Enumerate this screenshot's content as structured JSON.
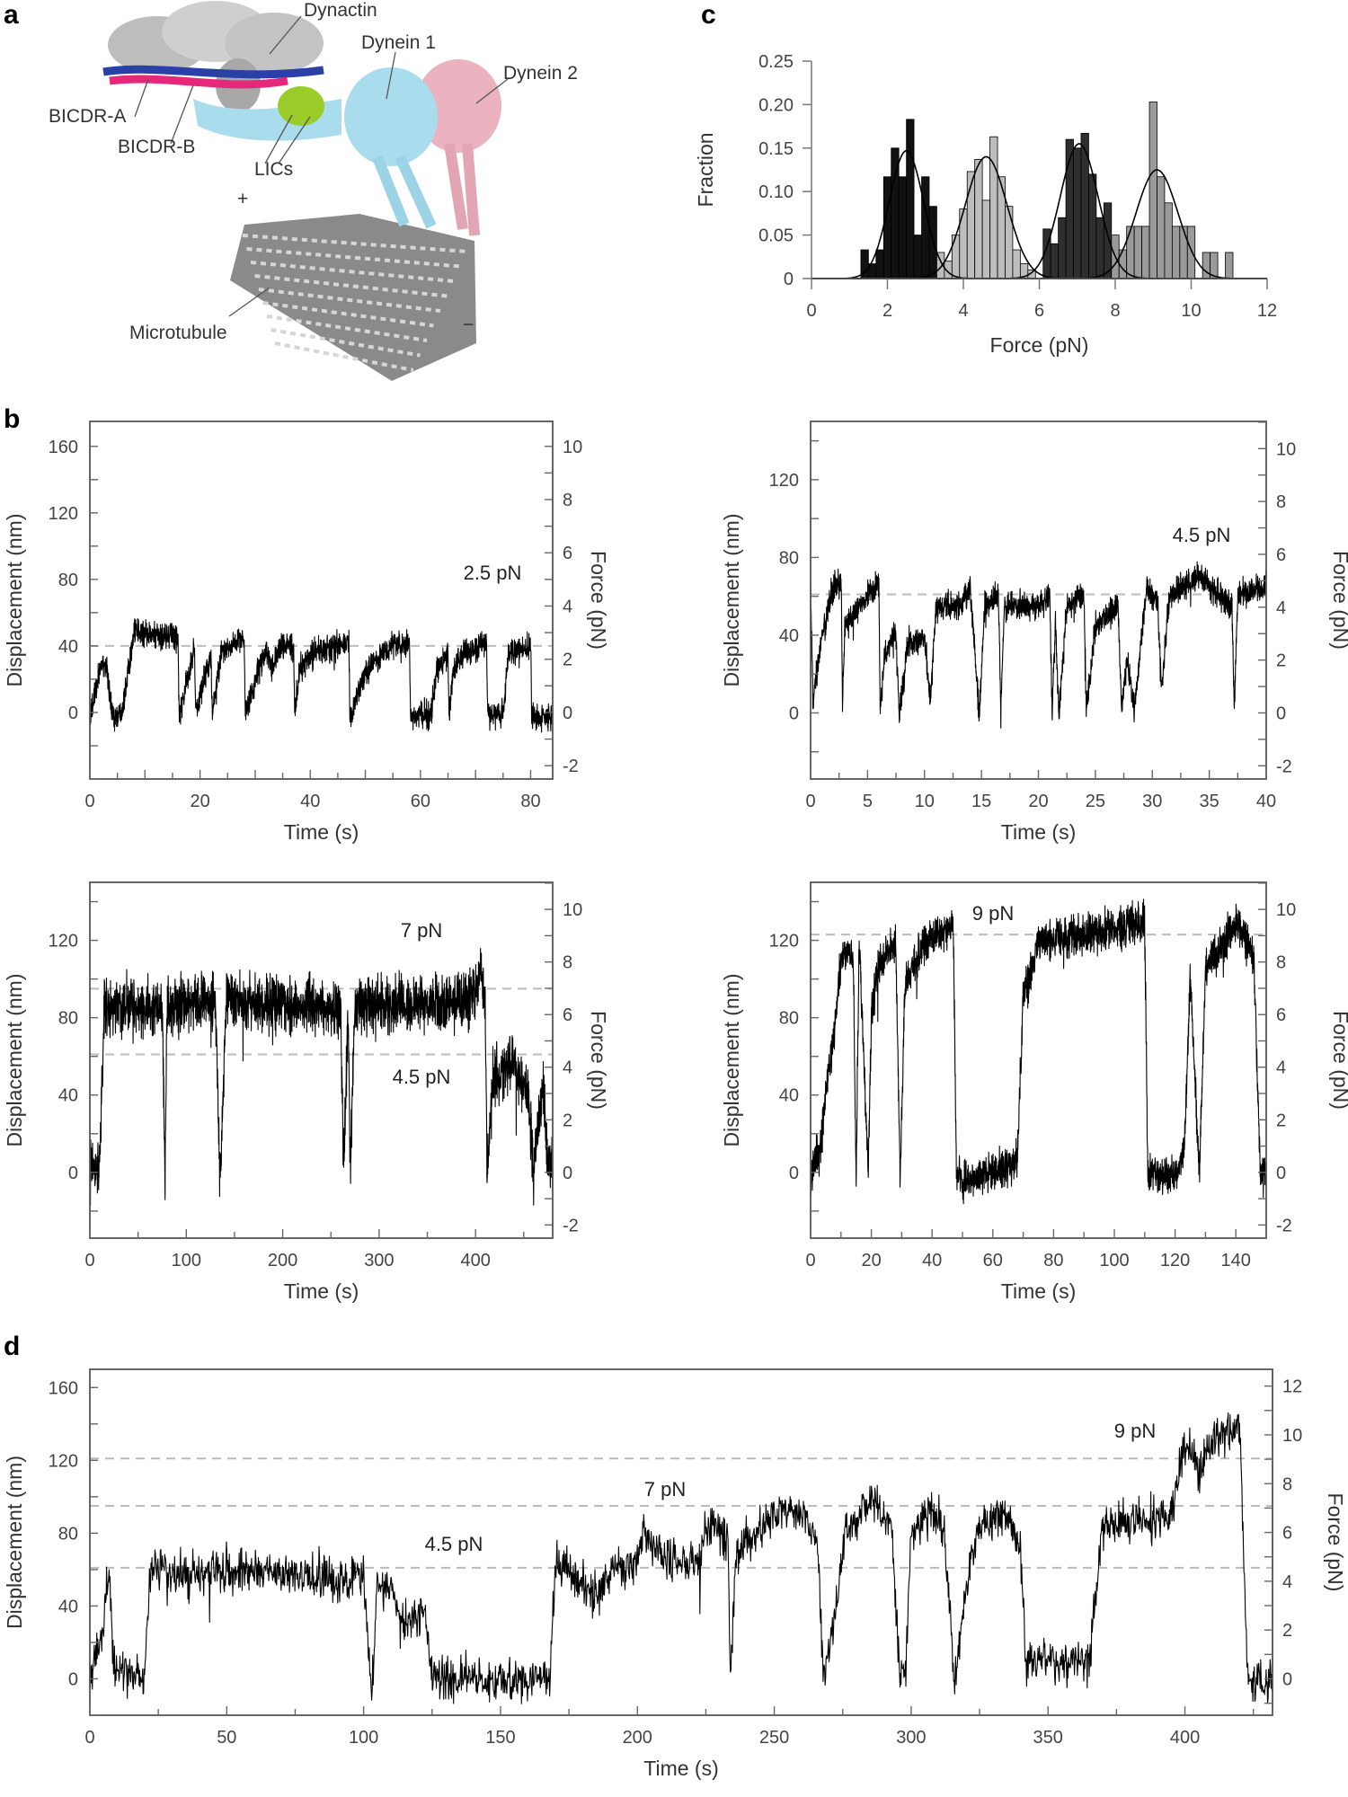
{
  "panel_labels": {
    "a": "a",
    "b": "b",
    "c": "c",
    "d": "d"
  },
  "structure": {
    "labels": {
      "dynactin": "Dynactin",
      "dynein1": "Dynein 1",
      "dynein2": "Dynein 2",
      "bicdr_a": "BICDR-A",
      "bicdr_b": "BICDR-B",
      "lics": "LICs",
      "microtubule": "Microtubule",
      "plus_end": "+",
      "minus_end": "−"
    },
    "colors": {
      "dynactin": "#c8c8c8",
      "bicdr_a": "#2b3fa8",
      "bicdr_b": "#e6287a",
      "lics": "#9ccc2a",
      "dynein1": "#a9dcec",
      "dynein2": "#eab3bf",
      "microtubule": "#8a8a8a"
    }
  },
  "chart_data": [
    {
      "id": "c",
      "type": "bar",
      "title": "",
      "xlabel": "Force (pN)",
      "ylabel": "Fraction",
      "xlim": [
        0,
        12
      ],
      "ylim": [
        0,
        0.25
      ],
      "xticks": [
        "0",
        "2",
        "4",
        "6",
        "8",
        "10",
        "12"
      ],
      "yticks": [
        "0",
        "0.05",
        "0.10",
        "0.15",
        "0.20",
        "0.25"
      ],
      "bin_width": 0.2,
      "series": [
        {
          "name": "2.5 pN",
          "color": "#111111",
          "bins": [
            [
              1.4,
              0.033
            ],
            [
              1.6,
              0.017
            ],
            [
              1.8,
              0.033
            ],
            [
              2.0,
              0.117
            ],
            [
              2.2,
              0.15
            ],
            [
              2.4,
              0.117
            ],
            [
              2.6,
              0.183
            ],
            [
              2.8,
              0.05
            ],
            [
              3.0,
              0.117
            ],
            [
              3.2,
              0.083
            ],
            [
              3.4,
              0.017
            ],
            [
              3.6,
              0.017
            ],
            [
              3.8,
              0.033
            ],
            [
              4.0,
              0.017
            ]
          ],
          "fit": {
            "mean": 2.5,
            "sd": 0.45,
            "peak": 0.147
          }
        },
        {
          "name": "4.5 pN",
          "color": "#bdbdbd",
          "bins": [
            [
              3.4,
              0.03
            ],
            [
              3.6,
              0.02
            ],
            [
              3.8,
              0.05
            ],
            [
              4.0,
              0.08
            ],
            [
              4.2,
              0.123
            ],
            [
              4.4,
              0.137
            ],
            [
              4.6,
              0.09
            ],
            [
              4.8,
              0.163
            ],
            [
              5.0,
              0.117
            ],
            [
              5.2,
              0.083
            ],
            [
              5.4,
              0.033
            ],
            [
              5.6,
              0.017
            ],
            [
              5.8,
              0.01
            ]
          ],
          "fit": {
            "mean": 4.6,
            "sd": 0.55,
            "peak": 0.14
          }
        },
        {
          "name": "7 pN",
          "color": "#2e2e2e",
          "bins": [
            [
              6.2,
              0.057
            ],
            [
              6.4,
              0.04
            ],
            [
              6.6,
              0.07
            ],
            [
              6.8,
              0.16
            ],
            [
              7.0,
              0.15
            ],
            [
              7.2,
              0.167
            ],
            [
              7.4,
              0.12
            ],
            [
              7.6,
              0.07
            ],
            [
              7.8,
              0.087
            ],
            [
              8.0,
              0.03
            ]
          ],
          "fit": {
            "mean": 7.05,
            "sd": 0.5,
            "peak": 0.155
          }
        },
        {
          "name": "9 pN",
          "color": "#9a9a9a",
          "bins": [
            [
              8.0,
              0.05
            ],
            [
              8.2,
              0.033
            ],
            [
              8.4,
              0.06
            ],
            [
              8.6,
              0.06
            ],
            [
              8.8,
              0.06
            ],
            [
              9.0,
              0.203
            ],
            [
              9.2,
              0.117
            ],
            [
              9.4,
              0.087
            ],
            [
              9.6,
              0.06
            ],
            [
              9.8,
              0.06
            ],
            [
              10.0,
              0.06
            ],
            [
              10.4,
              0.03
            ],
            [
              10.6,
              0.03
            ],
            [
              11.0,
              0.03
            ]
          ],
          "fit": {
            "mean": 9.1,
            "sd": 0.55,
            "peak": 0.125
          }
        }
      ]
    },
    {
      "id": "b1",
      "type": "line",
      "xlabel": "Time (s)",
      "ylabel": "Displacement (nm)",
      "y2label": "Force (pN)",
      "xlim": [
        0,
        84
      ],
      "ylim": [
        -40,
        175
      ],
      "xticks": [
        0,
        20,
        40,
        60,
        80
      ],
      "xminor": 10,
      "yticks": [
        0,
        40,
        80,
        120,
        160
      ],
      "yminor": 20,
      "y2ticks": [
        -2,
        0,
        2,
        4,
        6,
        8,
        10
      ],
      "y2minor": 1,
      "nm_per_pN": 16,
      "reference_lines": [
        {
          "y": 40,
          "label": "2.5 pN"
        }
      ],
      "noise_nm": 4,
      "keypoints": [
        [
          0,
          -5
        ],
        [
          2,
          30
        ],
        [
          3,
          28
        ],
        [
          4,
          0
        ],
        [
          5,
          -3
        ],
        [
          6,
          5
        ],
        [
          8,
          48
        ],
        [
          16,
          45
        ],
        [
          16.2,
          -3
        ],
        [
          19,
          38
        ],
        [
          19.2,
          0
        ],
        [
          22,
          35
        ],
        [
          22.2,
          -2
        ],
        [
          24,
          38
        ],
        [
          28,
          45
        ],
        [
          28.2,
          -2
        ],
        [
          31,
          30
        ],
        [
          32,
          38
        ],
        [
          33,
          28
        ],
        [
          35,
          42
        ],
        [
          37,
          38
        ],
        [
          37.2,
          -2
        ],
        [
          38,
          25
        ],
        [
          40,
          35
        ],
        [
          45,
          40
        ],
        [
          47,
          42
        ],
        [
          47.2,
          -3
        ],
        [
          50,
          25
        ],
        [
          54,
          38
        ],
        [
          58,
          42
        ],
        [
          58.2,
          -3
        ],
        [
          62,
          0
        ],
        [
          63,
          25
        ],
        [
          65,
          35
        ],
        [
          65.2,
          0
        ],
        [
          66,
          25
        ],
        [
          68,
          38
        ],
        [
          72,
          42
        ],
        [
          72.2,
          -3
        ],
        [
          75,
          0
        ],
        [
          76,
          35
        ],
        [
          80,
          40
        ],
        [
          80.2,
          -3
        ],
        [
          84,
          -3
        ]
      ]
    },
    {
      "id": "b2",
      "type": "line",
      "xlabel": "Time (s)",
      "ylabel": "Displacement (nm)",
      "y2label": "Force (pN)",
      "xlim": [
        0,
        40
      ],
      "ylim": [
        -34,
        150
      ],
      "xticks": [
        0,
        5,
        10,
        15,
        20,
        25,
        30,
        35,
        40
      ],
      "xminor": 5,
      "yticks": [
        0,
        40,
        80,
        120
      ],
      "yminor": 20,
      "y2ticks": [
        -2,
        0,
        2,
        4,
        6,
        8,
        10
      ],
      "y2minor": 1,
      "nm_per_pN": 13.6,
      "reference_lines": [
        {
          "y": 61,
          "label": "4.5 pN"
        }
      ],
      "noise_nm": 3.5,
      "keypoints": [
        [
          0,
          65
        ],
        [
          0.2,
          5
        ],
        [
          1,
          40
        ],
        [
          2,
          65
        ],
        [
          2.7,
          66
        ],
        [
          2.8,
          5
        ],
        [
          3,
          45
        ],
        [
          6,
          68
        ],
        [
          6.1,
          0
        ],
        [
          6.5,
          30
        ],
        [
          7.5,
          40
        ],
        [
          7.8,
          -2
        ],
        [
          8.5,
          35
        ],
        [
          10,
          40
        ],
        [
          10.5,
          5
        ],
        [
          11,
          55
        ],
        [
          13,
          55
        ],
        [
          14,
          65
        ],
        [
          14.8,
          0
        ],
        [
          15.3,
          55
        ],
        [
          16.5,
          60
        ],
        [
          16.7,
          0
        ],
        [
          17,
          55
        ],
        [
          20,
          55
        ],
        [
          21,
          60
        ],
        [
          21.2,
          0
        ],
        [
          21.5,
          45
        ],
        [
          21.8,
          0
        ],
        [
          22.5,
          55
        ],
        [
          24,
          60
        ],
        [
          24.2,
          0
        ],
        [
          25,
          45
        ],
        [
          27,
          55
        ],
        [
          27.3,
          0
        ],
        [
          27.8,
          30
        ],
        [
          28.4,
          0
        ],
        [
          29.5,
          65
        ],
        [
          30.5,
          55
        ],
        [
          30.8,
          10
        ],
        [
          31.5,
          60
        ],
        [
          34,
          70
        ],
        [
          36,
          60
        ],
        [
          37,
          55
        ],
        [
          37.2,
          0
        ],
        [
          37.5,
          60
        ],
        [
          40,
          65
        ]
      ]
    },
    {
      "id": "b3",
      "type": "line",
      "xlabel": "Time (s)",
      "ylabel": "Displacement (nm)",
      "y2label": "Force (pN)",
      "xlim": [
        0,
        480
      ],
      "ylim": [
        -34,
        150
      ],
      "xticks": [
        0,
        100,
        200,
        300,
        400
      ],
      "xminor": 100,
      "yticks": [
        0,
        40,
        80,
        120
      ],
      "yminor": 20,
      "y2ticks": [
        -2,
        0,
        2,
        4,
        6,
        8,
        10
      ],
      "y2minor": 1,
      "nm_per_pN": 13.6,
      "reference_lines": [
        {
          "y": 95,
          "label": "7 pN"
        },
        {
          "y": 61,
          "label": "4.5 pN"
        }
      ],
      "noise_nm": 7,
      "keypoints": [
        [
          0,
          0
        ],
        [
          10,
          5
        ],
        [
          15,
          85
        ],
        [
          75,
          85
        ],
        [
          78,
          -5
        ],
        [
          80,
          85
        ],
        [
          130,
          90
        ],
        [
          135,
          -5
        ],
        [
          142,
          90
        ],
        [
          260,
          85
        ],
        [
          263,
          5
        ],
        [
          268,
          85
        ],
        [
          270,
          0
        ],
        [
          275,
          85
        ],
        [
          400,
          90
        ],
        [
          405,
          105
        ],
        [
          410,
          85
        ],
        [
          412,
          0
        ],
        [
          418,
          50
        ],
        [
          440,
          55
        ],
        [
          455,
          40
        ],
        [
          460,
          0
        ],
        [
          470,
          45
        ],
        [
          475,
          5
        ],
        [
          480,
          2
        ]
      ]
    },
    {
      "id": "b4",
      "type": "line",
      "xlabel": "Time (s)",
      "ylabel": "Displacement (nm)",
      "y2label": "Force (pN)",
      "xlim": [
        0,
        150
      ],
      "ylim": [
        -34,
        150
      ],
      "xticks": [
        0,
        20,
        40,
        60,
        80,
        100,
        120,
        140
      ],
      "xminor": 20,
      "yticks": [
        0,
        40,
        80,
        120
      ],
      "yminor": 20,
      "y2ticks": [
        -2,
        0,
        2,
        4,
        6,
        8,
        10
      ],
      "y2minor": 1,
      "nm_per_pN": 13.6,
      "reference_lines": [
        {
          "y": 123,
          "label": "9 pN"
        }
      ],
      "noise_nm": 5,
      "keypoints": [
        [
          0,
          0
        ],
        [
          3,
          10
        ],
        [
          5,
          40
        ],
        [
          8,
          75
        ],
        [
          10,
          110
        ],
        [
          14,
          115
        ],
        [
          15,
          -2
        ],
        [
          16,
          120
        ],
        [
          19,
          -2
        ],
        [
          20,
          80
        ],
        [
          22,
          105
        ],
        [
          28,
          120
        ],
        [
          29.5,
          -2
        ],
        [
          31,
          95
        ],
        [
          38,
          120
        ],
        [
          47,
          128
        ],
        [
          48,
          0
        ],
        [
          50,
          -5
        ],
        [
          60,
          0
        ],
        [
          68,
          5
        ],
        [
          70,
          90
        ],
        [
          75,
          120
        ],
        [
          100,
          125
        ],
        [
          110,
          130
        ],
        [
          111,
          0
        ],
        [
          120,
          -3
        ],
        [
          123,
          10
        ],
        [
          125,
          100
        ],
        [
          128,
          -2
        ],
        [
          130,
          105
        ],
        [
          140,
          130
        ],
        [
          146,
          110
        ],
        [
          148,
          0
        ],
        [
          150,
          -2
        ]
      ]
    },
    {
      "id": "d",
      "type": "line",
      "xlabel": "Time (s)",
      "ylabel": "Displacement (nm)",
      "y2label": "Force (pN)",
      "xlim": [
        0,
        432
      ],
      "ylim": [
        -20,
        170
      ],
      "xticks": [
        0,
        50,
        100,
        150,
        200,
        250,
        300,
        350,
        400
      ],
      "xminor": 50,
      "yticks": [
        0,
        40,
        80,
        120,
        160
      ],
      "yminor": 20,
      "y2ticks": [
        0,
        2,
        4,
        6,
        8,
        10,
        12
      ],
      "y2minor": 1,
      "nm_per_pN": 13.4,
      "reference_lines": [
        {
          "y": 61,
          "label": "4.5 pN"
        },
        {
          "y": 95,
          "label": "7 pN"
        },
        {
          "y": 121,
          "label": "9 pN"
        }
      ],
      "noise_nm": 6,
      "keypoints": [
        [
          0,
          0
        ],
        [
          5,
          30
        ],
        [
          7,
          60
        ],
        [
          9,
          5
        ],
        [
          20,
          0
        ],
        [
          22,
          60
        ],
        [
          100,
          55
        ],
        [
          103,
          -10
        ],
        [
          105,
          55
        ],
        [
          110,
          50
        ],
        [
          115,
          30
        ],
        [
          122,
          40
        ],
        [
          125,
          0
        ],
        [
          168,
          0
        ],
        [
          170,
          65
        ],
        [
          185,
          45
        ],
        [
          190,
          60
        ],
        [
          200,
          65
        ],
        [
          202,
          80
        ],
        [
          210,
          65
        ],
        [
          222,
          65
        ],
        [
          225,
          85
        ],
        [
          233,
          80
        ],
        [
          234,
          0
        ],
        [
          236,
          70
        ],
        [
          255,
          95
        ],
        [
          262,
          90
        ],
        [
          266,
          70
        ],
        [
          268,
          0
        ],
        [
          272,
          30
        ],
        [
          276,
          80
        ],
        [
          285,
          100
        ],
        [
          293,
          80
        ],
        [
          296,
          0
        ],
        [
          298,
          0
        ],
        [
          300,
          80
        ],
        [
          308,
          95
        ],
        [
          312,
          80
        ],
        [
          316,
          -5
        ],
        [
          320,
          50
        ],
        [
          325,
          85
        ],
        [
          335,
          90
        ],
        [
          340,
          70
        ],
        [
          342,
          10
        ],
        [
          365,
          10
        ],
        [
          370,
          85
        ],
        [
          395,
          90
        ],
        [
          400,
          130
        ],
        [
          405,
          115
        ],
        [
          410,
          130
        ],
        [
          420,
          140
        ],
        [
          423,
          0
        ],
        [
          432,
          0
        ]
      ]
    }
  ]
}
